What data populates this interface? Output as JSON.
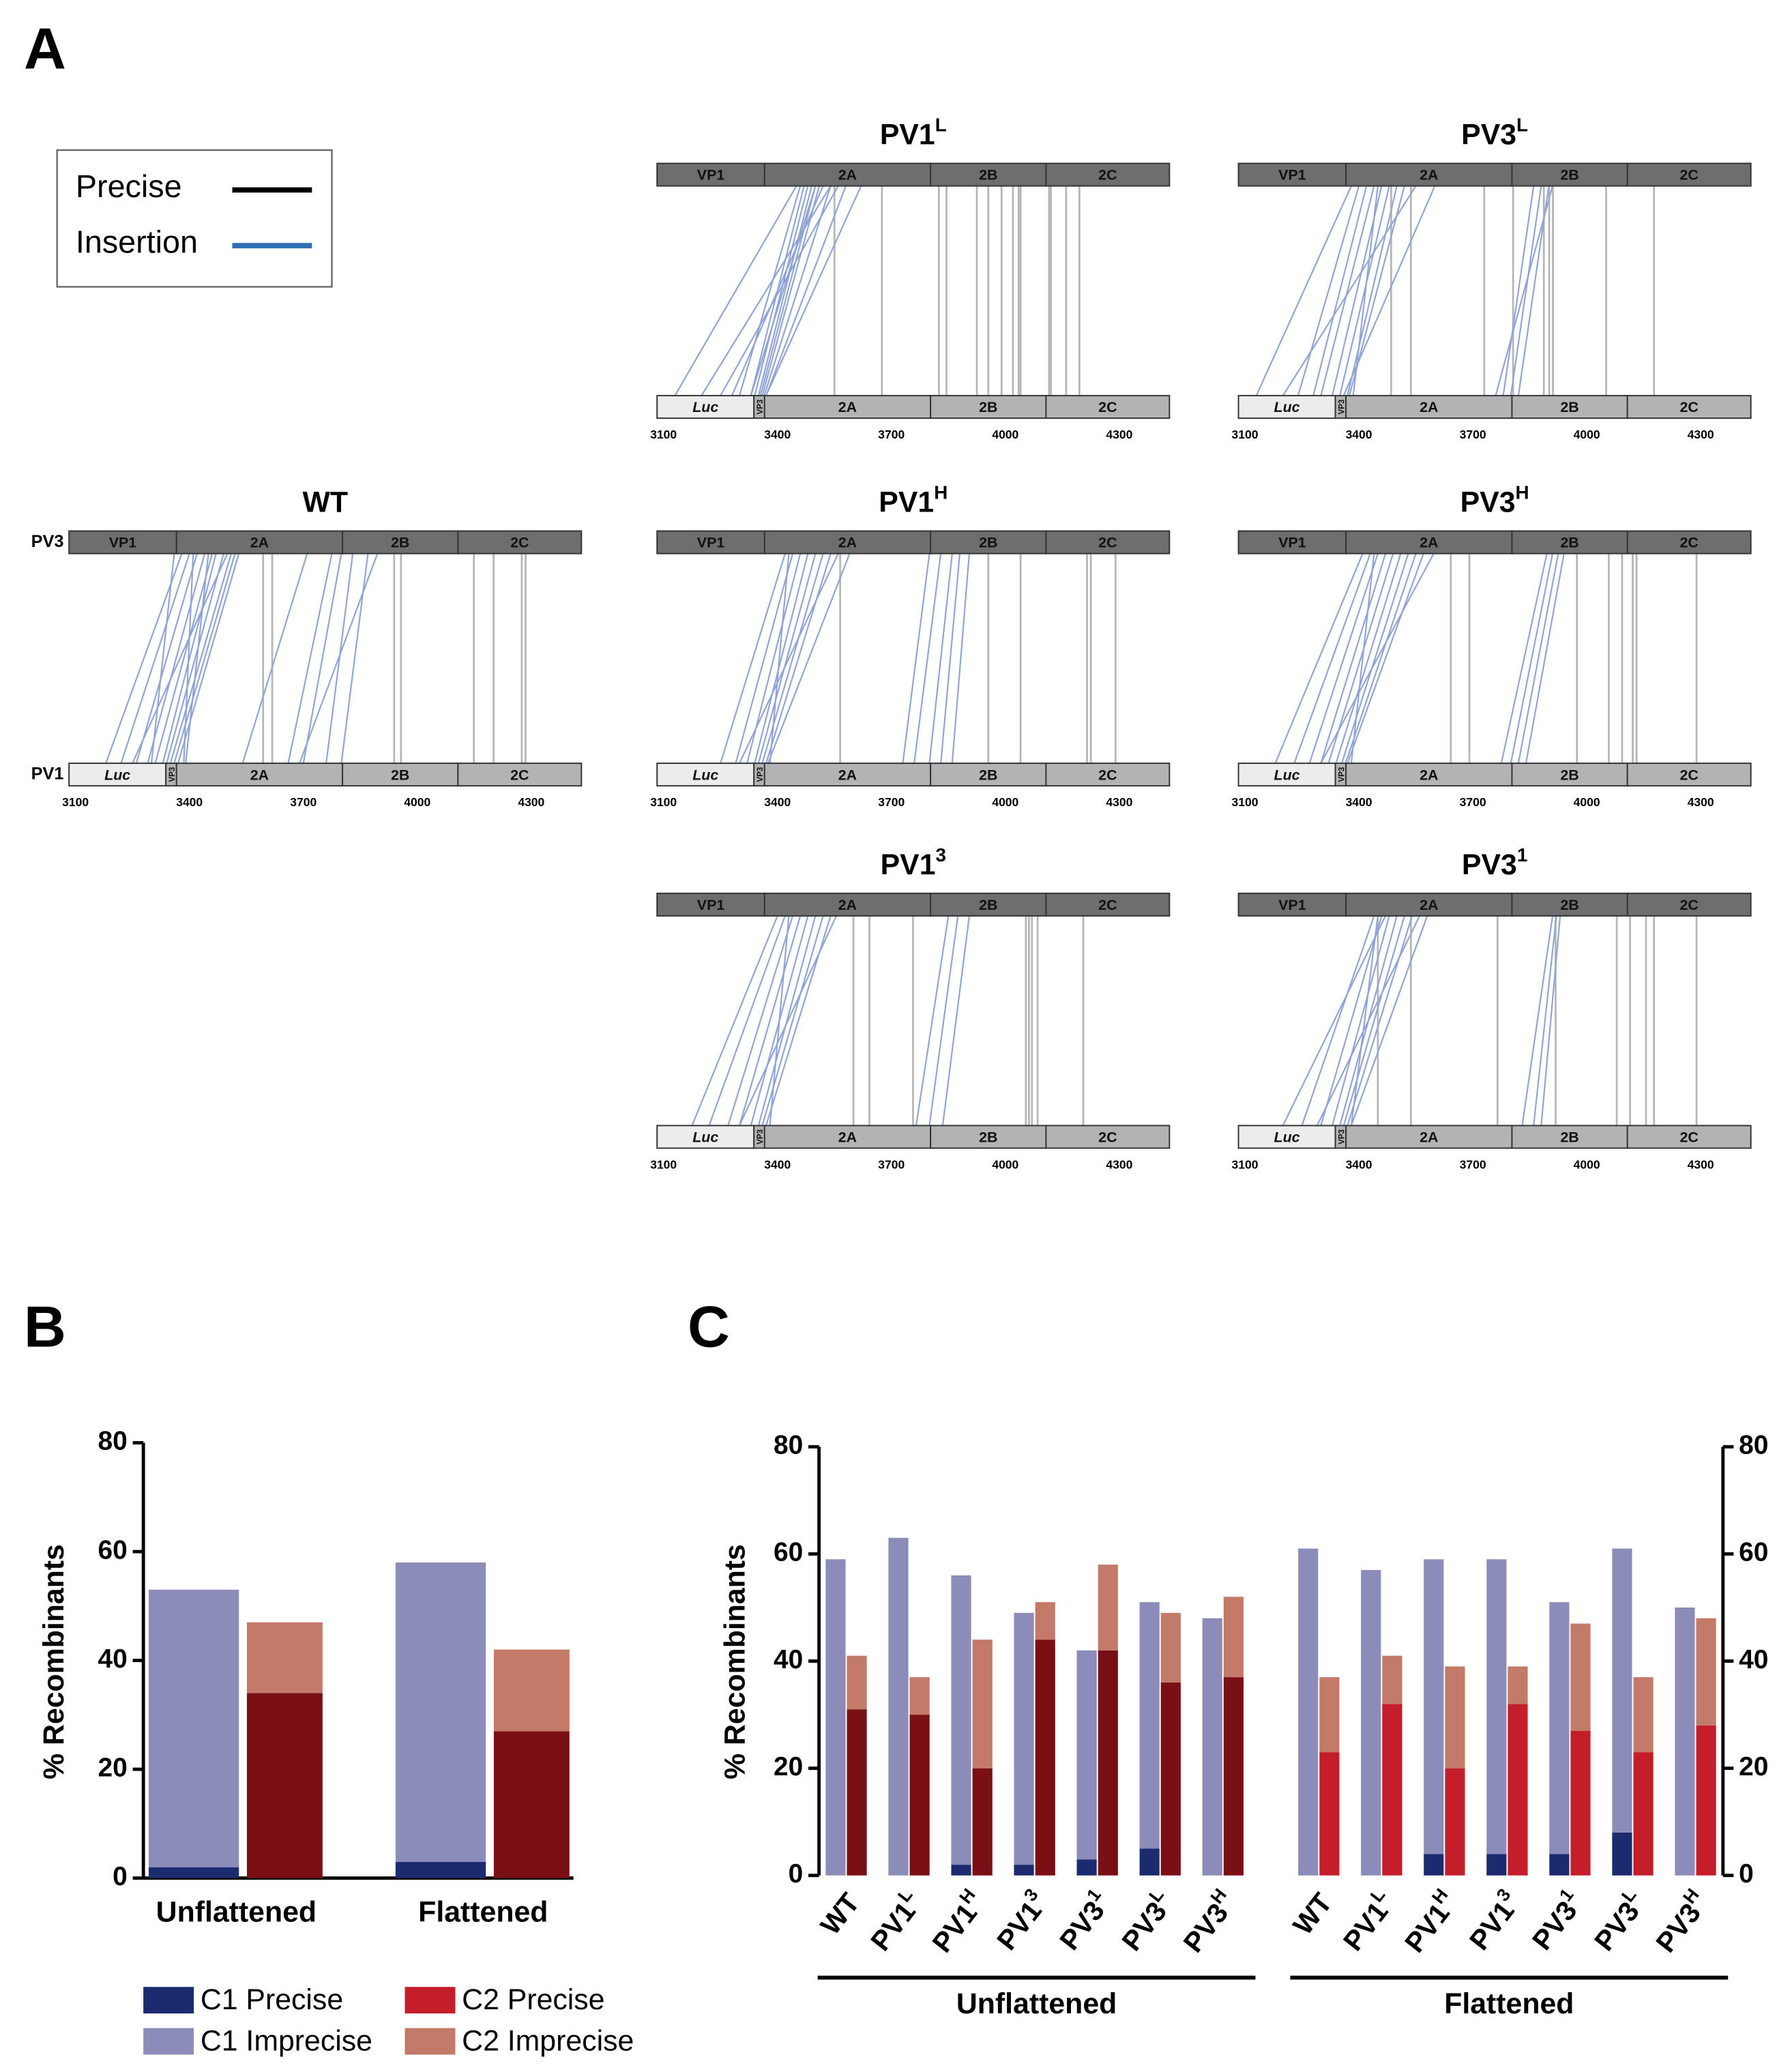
{
  "panel_labels": [
    "A",
    "B",
    "C"
  ],
  "panel_a": {
    "legend": [
      {
        "name": "Precise",
        "color": "#000000"
      },
      {
        "name": "Insertion",
        "color": "#2f6db5"
      }
    ],
    "precise_color": "#b5b5b5",
    "insertion_color": "#8fa3d4",
    "genome": {
      "xlim": [
        3083,
        4432
      ],
      "xticks": [
        3100,
        3400,
        3700,
        4000,
        4300
      ],
      "top_segments": [
        {
          "label": "VP1",
          "start": 3083,
          "end": 3366
        },
        {
          "label": "2A",
          "start": 3366,
          "end": 3803
        },
        {
          "label": "2B",
          "start": 3803,
          "end": 4107
        },
        {
          "label": "2C",
          "start": 4107,
          "end": 4432
        }
      ],
      "bottom_segments": [
        {
          "label": "Luc",
          "start": 3083,
          "end": 3338
        },
        {
          "label": "VP3",
          "start": 3338,
          "end": 3366
        },
        {
          "label": "2A",
          "start": 3366,
          "end": 3803
        },
        {
          "label": "2B",
          "start": 3803,
          "end": 4107
        },
        {
          "label": "2C",
          "start": 4107,
          "end": 4432
        }
      ]
    },
    "maps": [
      {
        "title": {
          "base": "PV1",
          "sup": "L"
        },
        "insertions": [
          [
            3450,
            3130
          ],
          [
            3460,
            3300
          ],
          [
            3470,
            3330
          ],
          [
            3480,
            3340
          ],
          [
            3490,
            3350
          ],
          [
            3500,
            3355
          ],
          [
            3510,
            3360
          ],
          [
            3520,
            3280
          ],
          [
            3540,
            3365
          ],
          [
            3560,
            3250
          ],
          [
            3580,
            3370
          ],
          [
            3620,
            3370
          ],
          [
            3540,
            3200
          ],
          [
            3500,
            3330
          ]
        ],
        "precise": [
          3550,
          3675,
          3825,
          3845,
          3925,
          3955,
          3990,
          4020,
          4035,
          4040,
          4115,
          4120,
          4160,
          4195
        ]
      },
      {
        "title": {
          "base": "PV3",
          "sup": "L"
        },
        "insertions": [
          [
            3380,
            3130
          ],
          [
            3400,
            3240
          ],
          [
            3420,
            3280
          ],
          [
            3440,
            3300
          ],
          [
            3460,
            3330
          ],
          [
            3480,
            3350
          ],
          [
            3500,
            3370
          ],
          [
            3520,
            3375
          ],
          [
            3550,
            3200
          ],
          [
            3600,
            3360
          ],
          [
            3450,
            3385
          ],
          [
            3860,
            3780
          ],
          [
            3880,
            3800
          ],
          [
            3900,
            3820
          ],
          [
            3910,
            3760
          ]
        ],
        "precise": [
          3485,
          3537,
          3730,
          3806,
          3887,
          3901,
          3911,
          4051,
          4177
        ]
      },
      {
        "title": {
          "base": "WT"
        },
        "row_labels": [
          "PV3",
          "PV1"
        ],
        "insertions": [
          [
            3380,
            3180
          ],
          [
            3400,
            3220
          ],
          [
            3420,
            3260
          ],
          [
            3440,
            3290
          ],
          [
            3460,
            3310
          ],
          [
            3470,
            3330
          ],
          [
            3490,
            3340
          ],
          [
            3510,
            3350
          ],
          [
            3520,
            3360
          ],
          [
            3530,
            3370
          ],
          [
            3410,
            3385
          ],
          [
            3450,
            3390
          ],
          [
            3360,
            3300
          ],
          [
            3500,
            3250
          ],
          [
            3775,
            3660
          ],
          [
            3800,
            3700
          ],
          [
            3830,
            3760
          ],
          [
            3870,
            3800
          ],
          [
            3895,
            3690
          ],
          [
            3710,
            3540
          ]
        ],
        "precise": [
          3594,
          3618,
          3939,
          3957,
          4149,
          4201,
          4275,
          4285
        ]
      },
      {
        "title": {
          "base": "PV1",
          "sup": "H"
        },
        "insertions": [
          [
            3420,
            3250
          ],
          [
            3440,
            3290
          ],
          [
            3460,
            3320
          ],
          [
            3480,
            3340
          ],
          [
            3500,
            3350
          ],
          [
            3520,
            3360
          ],
          [
            3540,
            3370
          ],
          [
            3560,
            3300
          ],
          [
            3590,
            3375
          ],
          [
            3430,
            3380
          ],
          [
            3800,
            3730
          ],
          [
            3830,
            3760
          ],
          [
            3860,
            3800
          ],
          [
            3880,
            3830
          ],
          [
            3905,
            3860
          ]
        ],
        "precise": [
          3565,
          3955,
          4040,
          4215,
          4225,
          4290
        ]
      },
      {
        "title": {
          "base": "PV3",
          "sup": "H"
        },
        "insertions": [
          [
            3410,
            3180
          ],
          [
            3430,
            3230
          ],
          [
            3450,
            3270
          ],
          [
            3470,
            3300
          ],
          [
            3490,
            3320
          ],
          [
            3510,
            3340
          ],
          [
            3530,
            3355
          ],
          [
            3550,
            3365
          ],
          [
            3570,
            3370
          ],
          [
            3597,
            3300
          ],
          [
            3440,
            3380
          ],
          [
            3895,
            3775
          ],
          [
            3910,
            3800
          ],
          [
            3925,
            3820
          ],
          [
            3940,
            3840
          ]
        ],
        "precise": [
          3642,
          3691,
          3974,
          4058,
          4093,
          4121,
          4131,
          4289
        ]
      },
      {
        "title": {
          "base": "PV1",
          "sup": "3"
        },
        "insertions": [
          [
            3400,
            3175
          ],
          [
            3420,
            3220
          ],
          [
            3440,
            3270
          ],
          [
            3460,
            3300
          ],
          [
            3480,
            3330
          ],
          [
            3500,
            3350
          ],
          [
            3520,
            3360
          ],
          [
            3540,
            3370
          ],
          [
            3555,
            3300
          ],
          [
            3430,
            3380
          ],
          [
            3850,
            3765
          ],
          [
            3875,
            3800
          ],
          [
            3905,
            3835
          ]
        ],
        "precise": [
          3600,
          3642,
          3757,
          4054,
          4062,
          4070,
          4085,
          4205
        ]
      },
      {
        "title": {
          "base": "PV3",
          "sup": "1"
        },
        "insertions": [
          [
            3440,
            3250
          ],
          [
            3460,
            3300
          ],
          [
            3480,
            3330
          ],
          [
            3500,
            3350
          ],
          [
            3520,
            3360
          ],
          [
            3540,
            3370
          ],
          [
            3560,
            3290
          ],
          [
            3580,
            3380
          ],
          [
            3450,
            3380
          ],
          [
            3470,
            3200
          ],
          [
            3910,
            3830
          ],
          [
            3920,
            3860
          ],
          [
            3930,
            3880
          ]
        ],
        "precise": [
          3450,
          3537,
          3765,
          3918,
          4079,
          4114,
          4156,
          4177,
          4289
        ]
      }
    ]
  },
  "chart_data": [
    {
      "type": "stacked_bar",
      "ylabel": "% Recombinants",
      "ylim": [
        0,
        80
      ],
      "yticks": [
        0,
        20,
        40,
        60,
        80
      ],
      "categories": [
        "Unflattened",
        "Flattened"
      ],
      "series": [
        {
          "name": "C1 Precise",
          "stack": "C1",
          "color": "#1c2a6e",
          "values": [
            2,
            3
          ]
        },
        {
          "name": "C1 Imprecise",
          "stack": "C1",
          "color": "#8c8cb8",
          "values": [
            51,
            55
          ]
        },
        {
          "name": "C2 Precise",
          "stack": "C2",
          "color": "#7a1016",
          "legend_color": "#c41e2a",
          "values": [
            34,
            27
          ]
        },
        {
          "name": "C2 Imprecise",
          "stack": "C2",
          "color": "#c47a68",
          "values": [
            13,
            15
          ]
        }
      ]
    },
    {
      "type": "grouped_stacked_bar",
      "ylabel": "% Recombinants",
      "ylim": [
        0,
        80
      ],
      "yticks": [
        0,
        20,
        40,
        60,
        80
      ],
      "y2lim": [
        0,
        80
      ],
      "y2ticks": [
        0,
        20,
        40,
        60,
        80
      ],
      "categories": [
        {
          "base": "WT"
        },
        {
          "base": "PV1",
          "sup": "L"
        },
        {
          "base": "PV1",
          "sup": "H"
        },
        {
          "base": "PV1",
          "sup": "3"
        },
        {
          "base": "PV3",
          "sup": "1"
        },
        {
          "base": "PV3",
          "sup": "L"
        },
        {
          "base": "PV3",
          "sup": "H"
        }
      ],
      "groups": [
        {
          "name": "Unflattened",
          "series": [
            {
              "stack": "C1",
              "color": "#1c2a6e",
              "values": [
                0,
                0,
                2,
                2,
                3,
                5,
                0
              ]
            },
            {
              "stack": "C1",
              "color": "#8c8cb8",
              "values": [
                59,
                63,
                54,
                47,
                39,
                46,
                48
              ]
            },
            {
              "stack": "C2",
              "color": "#7a1016",
              "values": [
                31,
                30,
                20,
                44,
                42,
                36,
                37
              ]
            },
            {
              "stack": "C2",
              "color": "#c47a68",
              "values": [
                10,
                7,
                24,
                7,
                16,
                13,
                15
              ]
            }
          ]
        },
        {
          "name": "Flattened",
          "series": [
            {
              "stack": "C1",
              "color": "#1c2a6e",
              "values": [
                0,
                0,
                4,
                4,
                4,
                8,
                0
              ]
            },
            {
              "stack": "C1",
              "color": "#8c8cb8",
              "values": [
                61,
                57,
                55,
                55,
                47,
                53,
                50
              ]
            },
            {
              "stack": "C2",
              "color": "#c41e2a",
              "values": [
                23,
                32,
                20,
                32,
                27,
                23,
                28
              ]
            },
            {
              "stack": "C2",
              "color": "#c47a68",
              "values": [
                14,
                9,
                19,
                7,
                20,
                14,
                20
              ]
            }
          ]
        }
      ]
    }
  ]
}
